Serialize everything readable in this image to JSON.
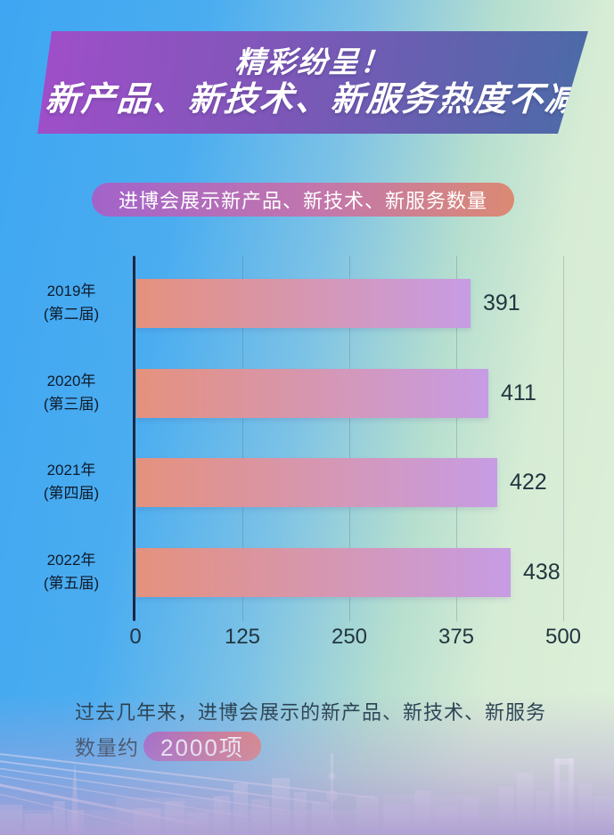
{
  "banner": {
    "line1": "精彩纷呈！",
    "line2": "新产品、新技术、新服务热度不减"
  },
  "subtitle": {
    "label": "进博会展示新产品、新技术、新服务数量"
  },
  "chart_data": {
    "type": "bar",
    "orientation": "horizontal",
    "title": "进博会展示新产品、新技术、新服务数量",
    "categories": [
      [
        "2019年",
        "(第二届)"
      ],
      [
        "2020年",
        "(第三届)"
      ],
      [
        "2021年",
        "(第四届)"
      ],
      [
        "2022年",
        "(第五届)"
      ]
    ],
    "values": [
      391,
      411,
      422,
      438
    ],
    "xlim": [
      0,
      500
    ],
    "xticks": [
      0,
      125,
      250,
      375,
      500
    ],
    "xlabel": "",
    "ylabel": "",
    "grid": "vertical",
    "legend": null,
    "bar_gradient": [
      "#e5917d",
      "#c79ce4"
    ]
  },
  "footer": {
    "line1": "过去几年来，进博会展示的新产品、新技术、新服务",
    "line2_prefix": "数量约",
    "highlight": "2000项"
  },
  "colors": {
    "background_left": "#3ea6f2",
    "background_right": "#def0d9",
    "background_bottom": "#b2a2d3",
    "banner_gradient": [
      "#a04ec9",
      "#4a6ba7"
    ],
    "subtitle_gradient": [
      "#a263ca",
      "#db8a73"
    ],
    "highlight_gradient": [
      "#a061c6",
      "#e08278"
    ],
    "axis_line": "#1a2742",
    "text_dark": "#22363f"
  }
}
